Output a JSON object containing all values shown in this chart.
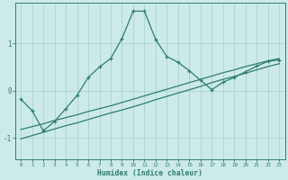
{
  "xlabel": "Humidex (Indice chaleur)",
  "bg_color": "#cceae8",
  "line_color": "#2e7d6e",
  "grid_color": "#aad4d0",
  "xlim": [
    -0.5,
    23.5
  ],
  "ylim": [
    -1.45,
    1.85
  ],
  "yticks": [
    -1,
    0,
    1
  ],
  "xticks": [
    0,
    1,
    2,
    3,
    4,
    5,
    6,
    7,
    8,
    9,
    10,
    11,
    12,
    13,
    14,
    15,
    16,
    17,
    18,
    19,
    20,
    21,
    22,
    23
  ],
  "curve_x": [
    0,
    1,
    2,
    3,
    4,
    5,
    6,
    7,
    8,
    9,
    10,
    11,
    12,
    13,
    14,
    15,
    16,
    17,
    18,
    19,
    20,
    21,
    22,
    23
  ],
  "curve_y": [
    -0.18,
    -0.42,
    -0.85,
    -0.65,
    -0.38,
    -0.1,
    0.28,
    0.5,
    0.68,
    1.1,
    1.68,
    1.68,
    1.08,
    0.72,
    0.6,
    0.42,
    0.22,
    0.02,
    0.18,
    0.28,
    0.4,
    0.52,
    0.62,
    0.65
  ],
  "line2_x": [
    0,
    1,
    2,
    3,
    4,
    5,
    6,
    7,
    8,
    9,
    10,
    11,
    12,
    13,
    14,
    15,
    16,
    17,
    18,
    19,
    20,
    21,
    22,
    23
  ],
  "line2_y": [
    -0.82,
    -0.76,
    -0.7,
    -0.63,
    -0.57,
    -0.51,
    -0.44,
    -0.38,
    -0.32,
    -0.25,
    -0.18,
    -0.11,
    -0.04,
    0.03,
    0.1,
    0.17,
    0.24,
    0.31,
    0.38,
    0.44,
    0.51,
    0.57,
    0.63,
    0.68
  ],
  "line3_x": [
    0,
    1,
    2,
    3,
    4,
    5,
    6,
    7,
    8,
    9,
    10,
    11,
    12,
    13,
    14,
    15,
    16,
    17,
    18,
    19,
    20,
    21,
    22,
    23
  ],
  "line3_y": [
    -1.02,
    -0.95,
    -0.88,
    -0.81,
    -0.74,
    -0.68,
    -0.61,
    -0.54,
    -0.47,
    -0.41,
    -0.34,
    -0.27,
    -0.19,
    -0.12,
    -0.05,
    0.02,
    0.09,
    0.17,
    0.24,
    0.3,
    0.37,
    0.44,
    0.51,
    0.57
  ]
}
